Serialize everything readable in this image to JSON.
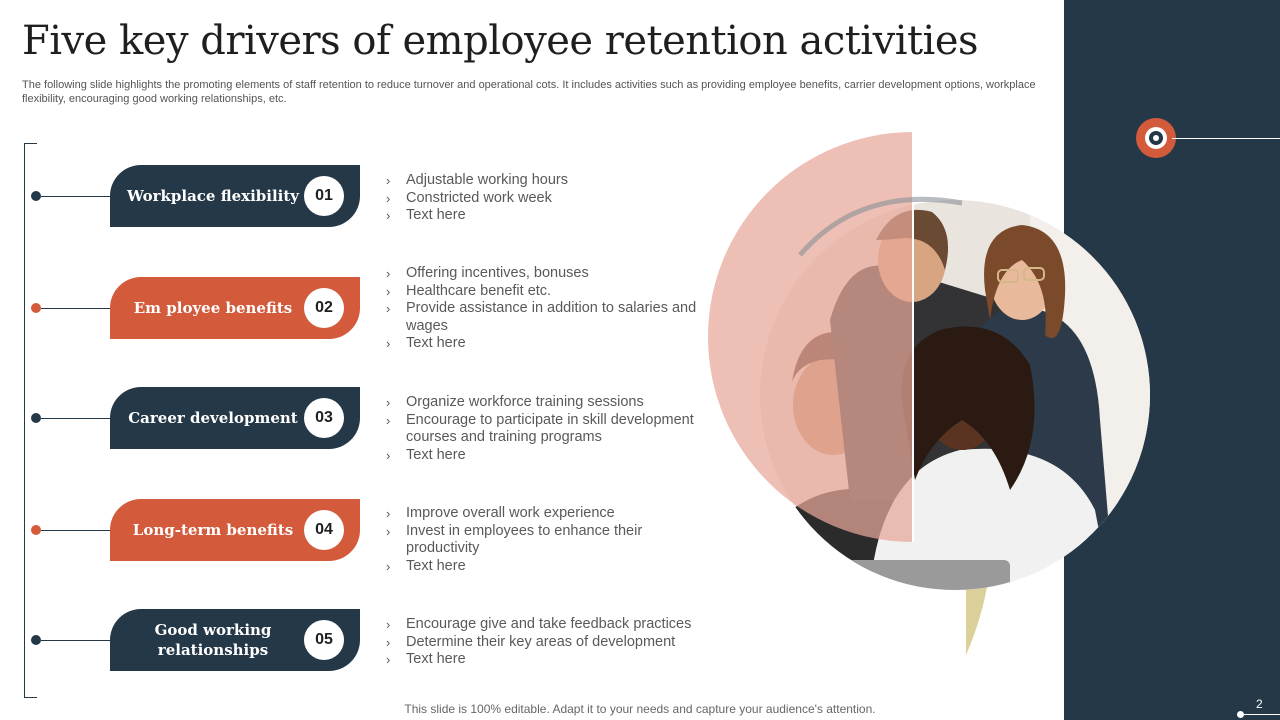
{
  "title": "Five key drivers of employee retention activities",
  "subtitle": "The following slide highlights the promoting elements of staff retention to reduce turnover  and operational cots. It includes activities such as providing employee benefits, carrier development options, workplace flexibility, encouraging good working relationships, etc.",
  "drivers": [
    {
      "label": "Workplace flexibility",
      "number": "01",
      "bullets": [
        "Adjustable working hours",
        "Constricted work week",
        "Text here"
      ]
    },
    {
      "label": "Em ployee benefits",
      "number": "02",
      "bullets": [
        "Offering incentives, bonuses",
        "Healthcare benefit etc.",
        "Provide assistance in addition to salaries and wages",
        "Text here"
      ]
    },
    {
      "label": "Career development",
      "number": "03",
      "bullets": [
        "Organize workforce training sessions",
        "Encourage to participate in skill development courses and training programs",
        "Text here"
      ]
    },
    {
      "label": "Long-term benefits",
      "number": "04",
      "bullets": [
        "Improve overall work experience",
        "Invest in employees to enhance their productivity",
        "Text here"
      ]
    },
    {
      "label": "Good working relationships",
      "number": "05",
      "bullets": [
        "Encourage give and take feedback practices",
        "Determine their key areas of development",
        "Text here"
      ]
    }
  ],
  "footer": "This slide is 100% editable. Adapt it to your needs and capture your audience's attention.",
  "page_number": "2",
  "colors": {
    "navy": "#253848",
    "orange": "#d35a3b",
    "pink": "#e8a898",
    "blue": "#7fb0c4",
    "tan": "#dcd09a"
  },
  "icons": {
    "bullet": "chevron-right-icon",
    "chevron_glyph": "›"
  }
}
